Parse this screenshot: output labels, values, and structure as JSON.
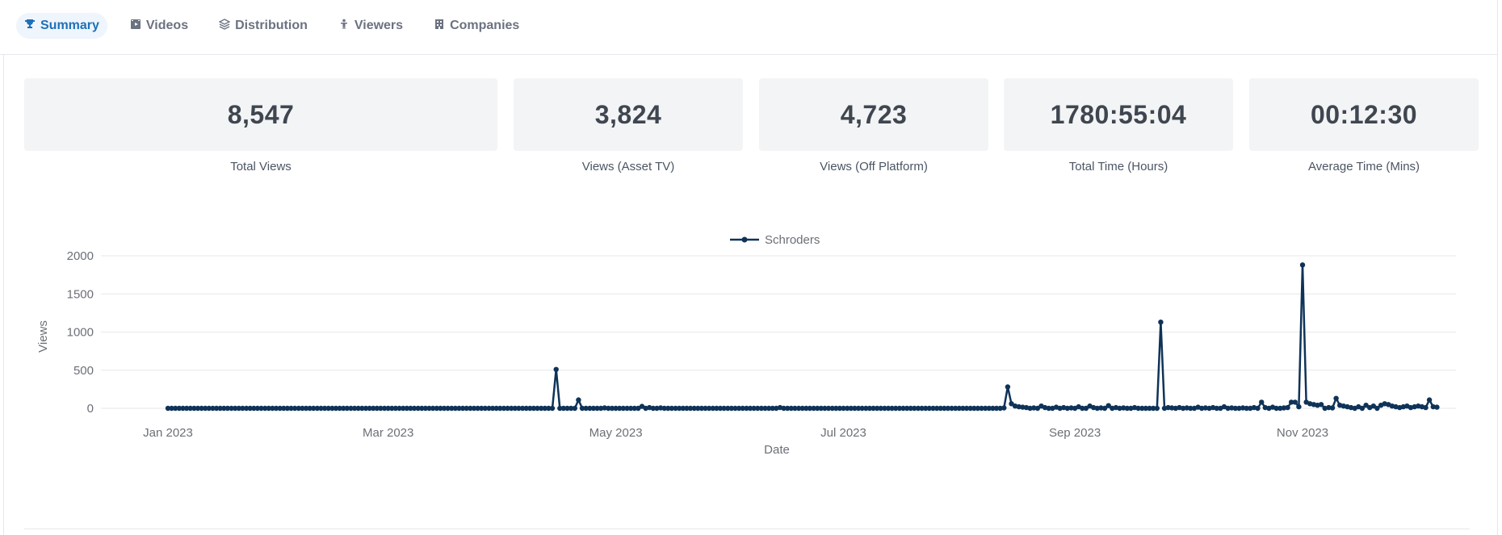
{
  "tabs": [
    {
      "label": "Summary",
      "icon": "trophy-icon",
      "active": true
    },
    {
      "label": "Videos",
      "icon": "film-icon",
      "active": false
    },
    {
      "label": "Distribution",
      "icon": "layers-icon",
      "active": false
    },
    {
      "label": "Viewers",
      "icon": "person-icon",
      "active": false
    },
    {
      "label": "Companies",
      "icon": "building-icon",
      "active": false
    }
  ],
  "stats": [
    {
      "value": "8,547",
      "label": "Total Views"
    },
    {
      "value": "3,824",
      "label": "Views (Asset TV)"
    },
    {
      "value": "4,723",
      "label": "Views (Off Platform)"
    },
    {
      "value": "1780:55:04",
      "label": "Total Time (Hours)"
    },
    {
      "value": "00:12:30",
      "label": "Average Time (Mins)"
    }
  ],
  "colors": {
    "accent": "#1f6fb8",
    "series": "#0f3358"
  },
  "chart_data": {
    "type": "line",
    "xlabel": "Date",
    "ylabel": "Views",
    "ylim": [
      0,
      2000
    ],
    "yticks": [
      0,
      500,
      1000,
      1500,
      2000
    ],
    "xticks": [
      "Jan 2023",
      "Mar 2023",
      "May 2023",
      "Jul 2023",
      "Sep 2023",
      "Nov 2023"
    ],
    "xlim": [
      "2023-01-01",
      "2023-12-15"
    ],
    "legend": "top-center",
    "grid": true,
    "series": [
      {
        "name": "Schroders",
        "color": "#0f3358",
        "date_range": [
          "2023-01-01",
          "2023-12-07"
        ],
        "baseline": 0,
        "points": [
          [
            "2023-04-15",
            510
          ],
          [
            "2023-04-16",
            0
          ],
          [
            "2023-04-20",
            0
          ],
          [
            "2023-04-21",
            110
          ],
          [
            "2023-04-22",
            0
          ],
          [
            "2023-04-28",
            5
          ],
          [
            "2023-05-08",
            25
          ],
          [
            "2023-05-10",
            10
          ],
          [
            "2023-05-13",
            5
          ],
          [
            "2023-06-14",
            10
          ],
          [
            "2023-08-13",
            5
          ],
          [
            "2023-08-14",
            280
          ],
          [
            "2023-08-15",
            60
          ],
          [
            "2023-08-16",
            30
          ],
          [
            "2023-08-17",
            20
          ],
          [
            "2023-08-18",
            15
          ],
          [
            "2023-08-19",
            10
          ],
          [
            "2023-08-21",
            5
          ],
          [
            "2023-08-23",
            30
          ],
          [
            "2023-08-24",
            10
          ],
          [
            "2023-08-27",
            15
          ],
          [
            "2023-08-29",
            10
          ],
          [
            "2023-08-31",
            5
          ],
          [
            "2023-09-02",
            20
          ],
          [
            "2023-09-05",
            30
          ],
          [
            "2023-09-06",
            10
          ],
          [
            "2023-09-08",
            5
          ],
          [
            "2023-09-10",
            35
          ],
          [
            "2023-09-12",
            10
          ],
          [
            "2023-09-14",
            5
          ],
          [
            "2023-09-17",
            10
          ],
          [
            "2023-09-20",
            0
          ],
          [
            "2023-09-23",
            0
          ],
          [
            "2023-09-24",
            1130
          ],
          [
            "2023-09-25",
            0
          ],
          [
            "2023-09-26",
            10
          ],
          [
            "2023-09-27",
            5
          ],
          [
            "2023-09-29",
            10
          ],
          [
            "2023-10-01",
            5
          ],
          [
            "2023-10-04",
            15
          ],
          [
            "2023-10-06",
            5
          ],
          [
            "2023-10-08",
            10
          ],
          [
            "2023-10-11",
            20
          ],
          [
            "2023-10-13",
            5
          ],
          [
            "2023-10-16",
            5
          ],
          [
            "2023-10-19",
            10
          ],
          [
            "2023-10-21",
            80
          ],
          [
            "2023-10-22",
            10
          ],
          [
            "2023-10-24",
            15
          ],
          [
            "2023-10-27",
            5
          ],
          [
            "2023-10-28",
            10
          ],
          [
            "2023-10-29",
            80
          ],
          [
            "2023-10-30",
            80
          ],
          [
            "2023-10-31",
            20
          ],
          [
            "2023-11-01",
            1880
          ],
          [
            "2023-11-02",
            80
          ],
          [
            "2023-11-03",
            60
          ],
          [
            "2023-11-04",
            50
          ],
          [
            "2023-11-05",
            40
          ],
          [
            "2023-11-06",
            50
          ],
          [
            "2023-11-07",
            0
          ],
          [
            "2023-11-08",
            10
          ],
          [
            "2023-11-09",
            5
          ],
          [
            "2023-11-10",
            130
          ],
          [
            "2023-11-11",
            40
          ],
          [
            "2023-11-12",
            30
          ],
          [
            "2023-11-13",
            20
          ],
          [
            "2023-11-14",
            10
          ],
          [
            "2023-11-16",
            20
          ],
          [
            "2023-11-18",
            40
          ],
          [
            "2023-11-19",
            10
          ],
          [
            "2023-11-20",
            30
          ],
          [
            "2023-11-22",
            40
          ],
          [
            "2023-11-23",
            60
          ],
          [
            "2023-11-24",
            50
          ],
          [
            "2023-11-25",
            30
          ],
          [
            "2023-11-26",
            20
          ],
          [
            "2023-11-27",
            10
          ],
          [
            "2023-11-28",
            20
          ],
          [
            "2023-11-29",
            30
          ],
          [
            "2023-11-30",
            10
          ],
          [
            "2023-12-01",
            20
          ],
          [
            "2023-12-02",
            30
          ],
          [
            "2023-12-03",
            20
          ],
          [
            "2023-12-04",
            10
          ],
          [
            "2023-12-05",
            110
          ],
          [
            "2023-12-06",
            20
          ],
          [
            "2023-12-07",
            15
          ]
        ]
      }
    ]
  }
}
